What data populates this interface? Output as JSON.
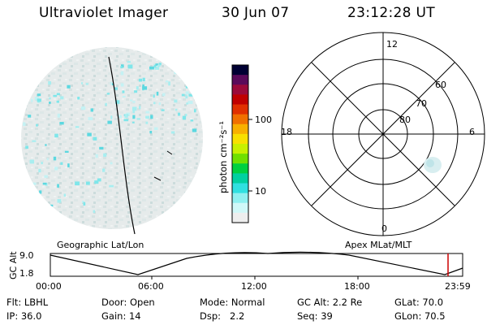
{
  "header": {
    "instrument": "Ultraviolet Imager",
    "date": "30 Jun 07",
    "time": "23:12:28 UT"
  },
  "colorbar": {
    "unit_label": "photon cm⁻²s⁻¹",
    "tick_labels": [
      "100",
      "10"
    ],
    "colors": [
      "#000033",
      "#5a0a5a",
      "#9b0a3a",
      "#c00000",
      "#e03000",
      "#f07000",
      "#f8b000",
      "#f8e000",
      "#c8f000",
      "#70e000",
      "#00d040",
      "#00d0a0",
      "#30e0e0",
      "#90f0f0",
      "#d0f8f8",
      "#eeeeee"
    ]
  },
  "geographic_panel": {
    "label": "Geographic Lat/Lon"
  },
  "polar_plot": {
    "label": "Apex MLat/MLT",
    "mlt_labels": {
      "top": "12",
      "left": "18",
      "right": "6",
      "bottom": "0"
    },
    "lat_labels": [
      "60",
      "70",
      "80"
    ]
  },
  "orbit_plot": {
    "ylabel": "GC Alt",
    "y_ticks": [
      "9.0",
      "1.8"
    ],
    "x_ticks": [
      "00:00",
      "06:00",
      "12:00",
      "18:00",
      "23:59"
    ],
    "marker_color": "#cc0000"
  },
  "info": {
    "row1": [
      {
        "key": "Flt:",
        "value": "LBHL"
      },
      {
        "key": "Door:",
        "value": "Open"
      },
      {
        "key": "Mode:",
        "value": "Normal"
      },
      {
        "key": "GC Alt:",
        "value": "2.2 Re"
      },
      {
        "key": "GLat:",
        "value": "70.0"
      }
    ],
    "row2": [
      {
        "key": "IP:",
        "value": "36.0"
      },
      {
        "key": "Gain:",
        "value": "14"
      },
      {
        "key": "Dsp:",
        "value": "2.2"
      },
      {
        "key": "Seq:",
        "value": "39"
      },
      {
        "key": "GLon:",
        "value": "70.5"
      }
    ]
  }
}
